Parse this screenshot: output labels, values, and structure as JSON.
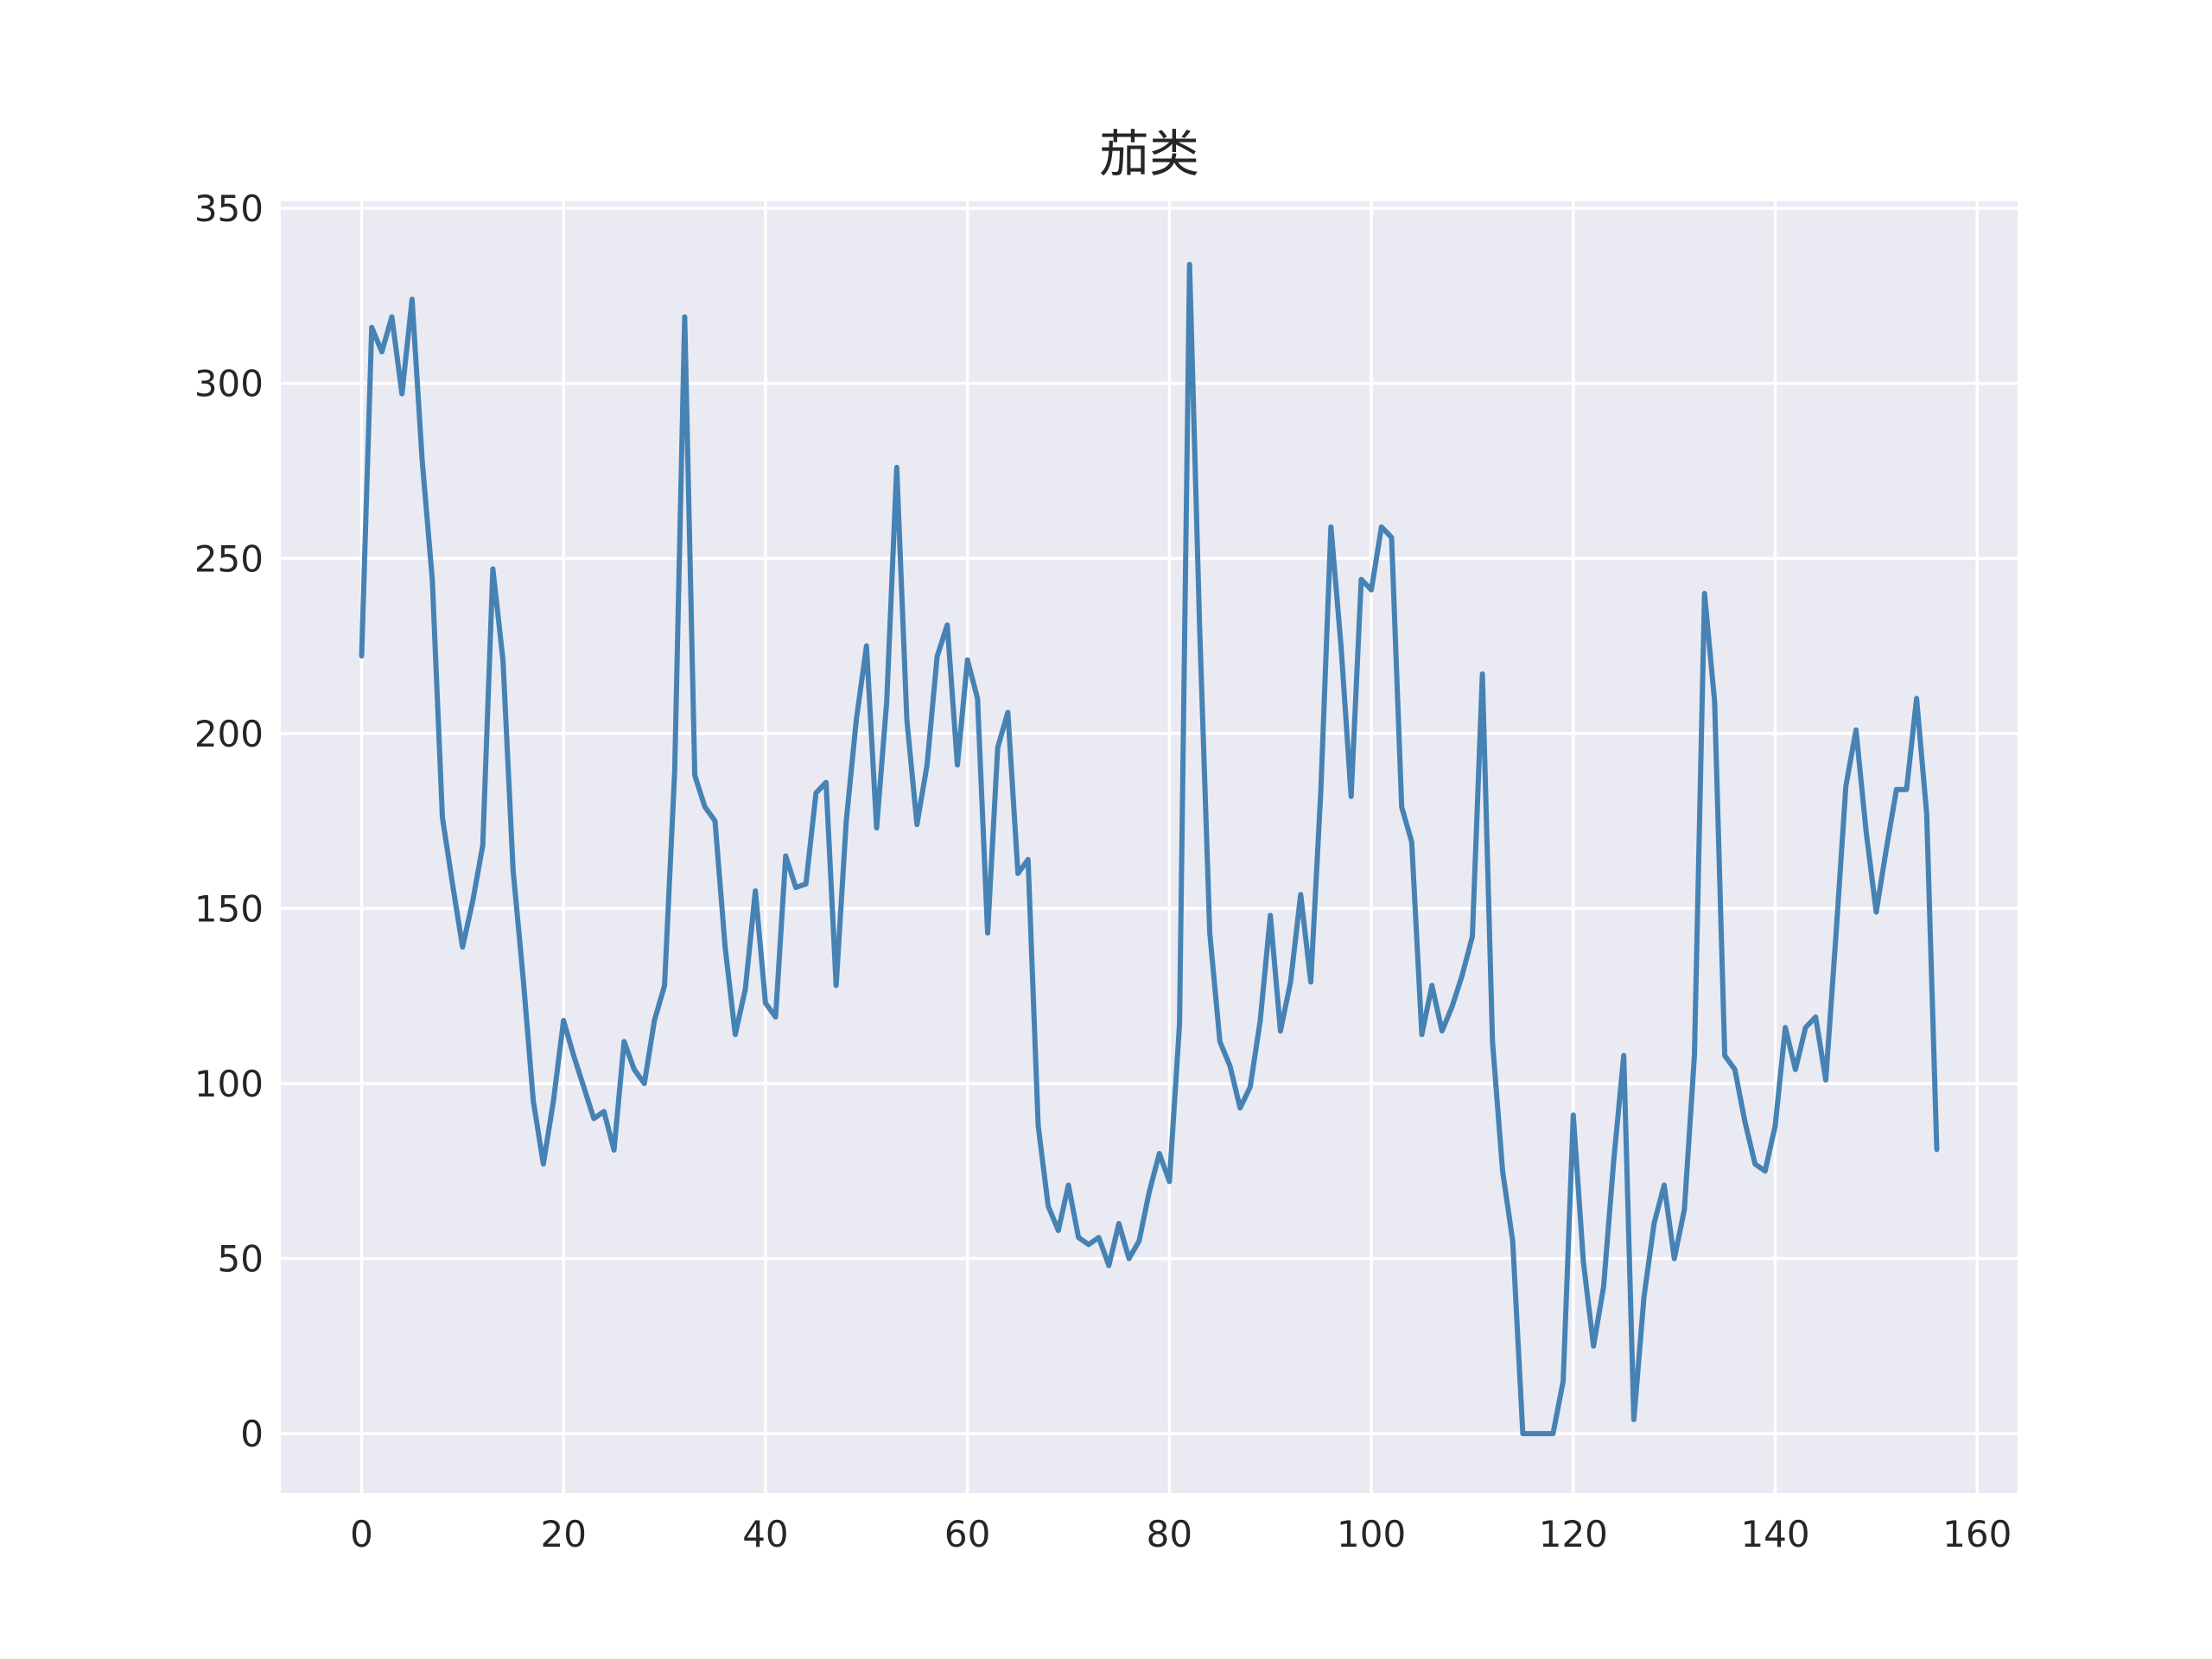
{
  "chart_data": {
    "type": "line",
    "title": "茄类",
    "xlabel": "",
    "ylabel": "",
    "xlim": [
      -8,
      164
    ],
    "ylim": [
      -17,
      352
    ],
    "xticks": [
      0,
      20,
      40,
      60,
      80,
      100,
      120,
      140,
      160
    ],
    "yticks": [
      0,
      50,
      100,
      150,
      200,
      250,
      300,
      350
    ],
    "grid": true,
    "legend": "none",
    "colors": {
      "background": "#eaeaf2",
      "grid": "#ffffff",
      "line": "#4682b4",
      "text": "#262626"
    },
    "series": [
      {
        "x": [
          0,
          1,
          2,
          3,
          4,
          5,
          6,
          7,
          8,
          9,
          10,
          11,
          12,
          13,
          14,
          15,
          16,
          17,
          18,
          19,
          20,
          21,
          22,
          23,
          24,
          25,
          26,
          27,
          28,
          29,
          30,
          31,
          32,
          33,
          34,
          35,
          36,
          37,
          38,
          39,
          40,
          41,
          42,
          43,
          44,
          45,
          46,
          47,
          48,
          49,
          50,
          51,
          52,
          53,
          54,
          55,
          56,
          57,
          58,
          59,
          60,
          61,
          62,
          63,
          64,
          65,
          66,
          67,
          68,
          69,
          70,
          71,
          72,
          73,
          74,
          75,
          76,
          77,
          78,
          79,
          80,
          81,
          82,
          83,
          84,
          85,
          86,
          87,
          88,
          89,
          90,
          91,
          92,
          93,
          94,
          95,
          96,
          97,
          98,
          99,
          100,
          101,
          102,
          103,
          104,
          105,
          106,
          107,
          108,
          109,
          110,
          111,
          112,
          113,
          114,
          115,
          116,
          117,
          118,
          119,
          120,
          121,
          122,
          123,
          124,
          125,
          126,
          127,
          128,
          129,
          130,
          131,
          132,
          133,
          134,
          135,
          136,
          137,
          138,
          139,
          140,
          141,
          142,
          143,
          144,
          145,
          146,
          147,
          148,
          149,
          150,
          151,
          152,
          153,
          154,
          155,
          156
        ],
        "values": [
          222,
          316,
          309,
          319,
          297,
          324,
          278,
          244,
          176,
          157,
          139,
          152,
          168,
          247,
          221,
          161,
          130,
          95,
          77,
          95,
          118,
          108,
          99,
          90,
          92,
          81,
          112,
          104,
          100,
          118,
          128,
          189,
          319,
          188,
          179,
          175,
          139,
          114,
          127,
          155,
          123,
          119,
          165,
          156,
          157,
          183,
          186,
          128,
          175,
          204,
          225,
          173,
          209,
          276,
          204,
          174,
          191,
          222,
          231,
          191,
          221,
          210,
          143,
          196,
          206,
          160,
          164,
          88,
          65,
          58,
          71,
          56,
          54,
          56,
          48,
          60,
          50,
          55,
          69,
          80,
          72,
          117,
          334,
          230,
          143,
          112,
          105,
          93,
          99,
          118,
          148,
          115,
          129,
          154,
          129,
          184,
          259,
          225,
          182,
          244,
          241,
          259,
          256,
          179,
          169,
          114,
          128,
          115,
          122,
          131,
          142,
          217,
          112,
          75,
          55,
          0,
          0,
          0,
          0,
          15,
          91,
          49,
          25,
          42,
          78,
          108,
          4,
          39,
          60,
          71,
          50,
          64,
          108,
          240,
          209,
          108,
          104,
          89,
          77,
          75,
          88,
          116,
          104,
          116,
          119,
          101,
          142,
          185,
          201,
          172,
          149,
          167,
          184,
          184,
          210,
          177,
          81
        ]
      }
    ]
  }
}
